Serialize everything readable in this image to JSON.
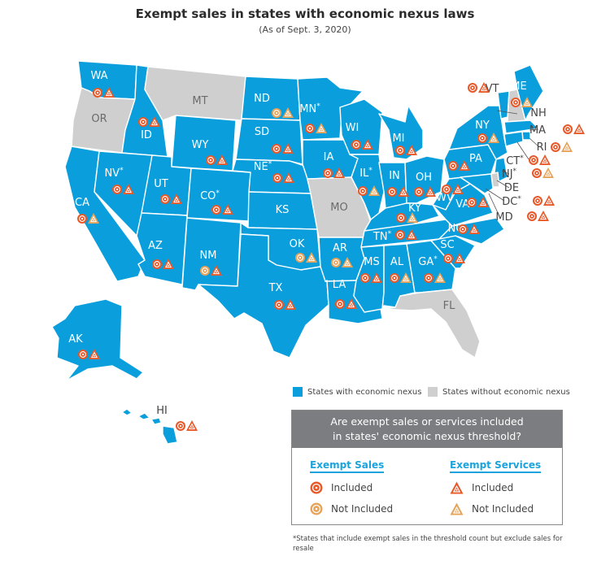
{
  "title": "Exempt sales in states with economic nexus laws",
  "subtitle": "(As of Sept. 3, 2020)",
  "colors": {
    "nexus": "#0a9fdc",
    "no_nexus": "#cfcfcf",
    "included": "#e8592a",
    "not_included": "#e6a35a"
  },
  "legend": {
    "nexus_label": "States with economic nexus",
    "no_nexus_label": "States without economic nexus"
  },
  "key": {
    "heading_line1": "Are exempt sales or services included",
    "heading_line2": "in states' economic nexus threshold?",
    "exempt_sales_title": "Exempt Sales",
    "exempt_services_title": "Exempt Services",
    "included_label": "Included",
    "not_included_label": "Not Included",
    "sales_icon": "circle-target-icon",
    "services_icon": "triangle-target-icon"
  },
  "footnote": "*States that include exempt sales in the threshold count but exclude sales for resale",
  "states": [
    {
      "abbr": "WA",
      "nexus": true,
      "sales": "included",
      "services": "included"
    },
    {
      "abbr": "OR",
      "nexus": false
    },
    {
      "abbr": "CA",
      "nexus": true,
      "sales": "included",
      "services": "not_included"
    },
    {
      "abbr": "ID",
      "nexus": true,
      "sales": "included",
      "services": "included"
    },
    {
      "abbr": "NV",
      "asterisk": "*",
      "nexus": true,
      "sales": "included",
      "services": "included"
    },
    {
      "abbr": "MT",
      "nexus": false
    },
    {
      "abbr": "WY",
      "nexus": true,
      "sales": "included",
      "services": "included"
    },
    {
      "abbr": "UT",
      "nexus": true,
      "sales": "included",
      "services": "included"
    },
    {
      "abbr": "AZ",
      "nexus": true,
      "sales": "included",
      "services": "included"
    },
    {
      "abbr": "CO",
      "asterisk": "*",
      "nexus": true,
      "sales": "included",
      "services": "included"
    },
    {
      "abbr": "NM",
      "nexus": true,
      "sales": "not_included",
      "services": "included"
    },
    {
      "abbr": "ND",
      "nexus": true,
      "sales": "not_included",
      "services": "not_included"
    },
    {
      "abbr": "SD",
      "nexus": true,
      "sales": "included",
      "services": "included"
    },
    {
      "abbr": "NE",
      "asterisk": "*",
      "nexus": true,
      "sales": "included",
      "services": "included"
    },
    {
      "abbr": "KS",
      "nexus": true
    },
    {
      "abbr": "OK",
      "nexus": true,
      "sales": "not_included",
      "services": "not_included"
    },
    {
      "abbr": "TX",
      "nexus": true,
      "sales": "included",
      "services": "included"
    },
    {
      "abbr": "MN",
      "asterisk": "*",
      "nexus": true,
      "sales": "included",
      "services": "not_included"
    },
    {
      "abbr": "IA",
      "nexus": true,
      "sales": "included",
      "services": "included"
    },
    {
      "abbr": "MO",
      "nexus": false
    },
    {
      "abbr": "AR",
      "nexus": true,
      "sales": "not_included",
      "services": "not_included"
    },
    {
      "abbr": "LA",
      "nexus": true,
      "sales": "included",
      "services": "included"
    },
    {
      "abbr": "WI",
      "nexus": true,
      "sales": "included",
      "services": "included"
    },
    {
      "abbr": "IL",
      "asterisk": "*",
      "nexus": true,
      "sales": "included",
      "services": "not_included"
    },
    {
      "abbr": "MI",
      "nexus": true,
      "sales": "included",
      "services": "included"
    },
    {
      "abbr": "IN",
      "nexus": true,
      "sales": "included",
      "services": "included"
    },
    {
      "abbr": "OH",
      "nexus": true,
      "sales": "included",
      "services": "included"
    },
    {
      "abbr": "KY",
      "nexus": true,
      "sales": "included",
      "services": "not_included"
    },
    {
      "abbr": "TN",
      "asterisk": "*",
      "nexus": true,
      "sales": "included",
      "services": "included"
    },
    {
      "abbr": "MS",
      "nexus": true,
      "sales": "included",
      "services": "included"
    },
    {
      "abbr": "AL",
      "nexus": true,
      "sales": "included",
      "services": "not_included"
    },
    {
      "abbr": "GA",
      "asterisk": "*",
      "nexus": true,
      "sales": "included",
      "services": "not_included"
    },
    {
      "abbr": "FL",
      "nexus": false
    },
    {
      "abbr": "SC",
      "nexus": true,
      "sales": "included",
      "services": "included"
    },
    {
      "abbr": "NC",
      "nexus": true,
      "sales": "included",
      "services": "included"
    },
    {
      "abbr": "VA",
      "asterisk": "*",
      "nexus": true,
      "sales": "included",
      "services": "included"
    },
    {
      "abbr": "WV",
      "nexus": true,
      "sales": "included",
      "services": "included"
    },
    {
      "abbr": "PA",
      "nexus": true,
      "sales": "included",
      "services": "included"
    },
    {
      "abbr": "NY",
      "nexus": true,
      "sales": "included",
      "services": "not_included"
    },
    {
      "abbr": "VT",
      "nexus": true,
      "sales": "included",
      "services": "included"
    },
    {
      "abbr": "NH",
      "nexus": false
    },
    {
      "abbr": "ME",
      "nexus": true,
      "sales": "included",
      "services": "not_included"
    },
    {
      "abbr": "MA",
      "nexus": true,
      "sales": "included",
      "services": "included"
    },
    {
      "abbr": "RI",
      "nexus": true,
      "sales": "included",
      "services": "not_included"
    },
    {
      "abbr": "CT",
      "asterisk": "*",
      "nexus": true,
      "sales": "included",
      "services": "included"
    },
    {
      "abbr": "NJ",
      "asterisk": "*",
      "nexus": true,
      "sales": "included",
      "services": "not_included"
    },
    {
      "abbr": "DE",
      "nexus": false
    },
    {
      "abbr": "DC",
      "asterisk": "*",
      "nexus": true,
      "sales": "included",
      "services": "included"
    },
    {
      "abbr": "MD",
      "nexus": true,
      "sales": "included",
      "services": "included"
    },
    {
      "abbr": "AK",
      "nexus": true,
      "sales": "included",
      "services": "included"
    },
    {
      "abbr": "HI",
      "nexus": true,
      "sales": "included",
      "services": "included"
    }
  ]
}
